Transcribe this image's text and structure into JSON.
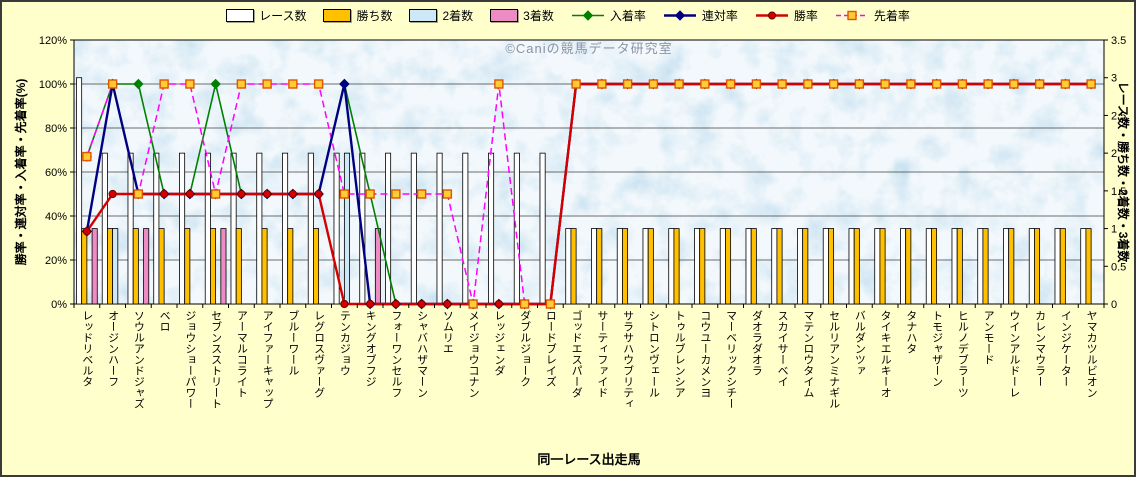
{
  "watermark": "©Caniの競馬データ研究室",
  "chart_data": {
    "type": "bar+line combo",
    "legend_position": "top",
    "plot_bg": "#BFDCEE",
    "categories": [
      "レッドリベルタ",
      "オージンハーフ",
      "ソウルアンドジャズ",
      "ベロ",
      "ジョウショーパワー",
      "セブンスストリート",
      "アーマルコライト",
      "アイファーキャップ",
      "ブルーワール",
      "レグロスヴァーグ",
      "テンカジョウ",
      "キングオブフジ",
      "フォーワンセルフ",
      "シャバハザマーン",
      "ソムリエ",
      "メイジョウコナン",
      "レッジェンダ",
      "ダブルジョーク",
      "ロードブレイズ",
      "ゴッドエスパーダ",
      "サーティファイド",
      "サラサハウブリティ",
      "シトロンヴェール",
      "トゥルブレンシア",
      "コウユーカメンヨ",
      "マーベリックシチー",
      "ダオラダオラ",
      "スカイサーベイ",
      "マテンロウタイム",
      "セルリアンミナギル",
      "バルダンツァ",
      "タイキエルキーオ",
      "タナハタ",
      "トモジャザーン",
      "ヒルノデブラーツ",
      "アンモード",
      "ウインアルドーレ",
      "カレンマウラー",
      "インジケーター",
      "ヤマカツルビオン"
    ],
    "bar_series": [
      {
        "key": "races",
        "name": "レース数",
        "color": "#FFFFFF",
        "values": [
          3,
          2,
          2,
          2,
          2,
          2,
          2,
          2,
          2,
          2,
          2,
          2,
          2,
          2,
          2,
          2,
          2,
          2,
          2,
          1,
          1,
          1,
          1,
          1,
          1,
          1,
          1,
          1,
          1,
          1,
          1,
          1,
          1,
          1,
          1,
          1,
          1,
          1,
          1,
          1
        ]
      },
      {
        "key": "wins",
        "name": "勝ち数",
        "color": "#FFC000",
        "values": [
          1,
          1,
          1,
          1,
          1,
          1,
          1,
          1,
          1,
          1,
          0,
          0,
          0,
          0,
          0,
          0,
          0,
          0,
          0,
          1,
          1,
          1,
          1,
          1,
          1,
          1,
          1,
          1,
          1,
          1,
          1,
          1,
          1,
          1,
          1,
          1,
          1,
          1,
          1,
          1
        ]
      },
      {
        "key": "seconds",
        "name": "2着数",
        "color": "#CDE9F8",
        "values": [
          0,
          1,
          0,
          0,
          0,
          0,
          0,
          0,
          0,
          0,
          2,
          0,
          0,
          0,
          0,
          0,
          0,
          0,
          0,
          0,
          0,
          0,
          0,
          0,
          0,
          0,
          0,
          0,
          0,
          0,
          0,
          0,
          0,
          0,
          0,
          0,
          0,
          0,
          0,
          0
        ]
      },
      {
        "key": "thirds",
        "name": "3着数",
        "color": "#ED8CC4",
        "values": [
          1,
          0,
          1,
          0,
          0,
          1,
          0,
          0,
          0,
          0,
          0,
          1,
          0,
          0,
          0,
          0,
          0,
          0,
          0,
          0,
          0,
          0,
          0,
          0,
          0,
          0,
          0,
          0,
          0,
          0,
          0,
          0,
          0,
          0,
          0,
          0,
          0,
          0,
          0,
          0
        ]
      }
    ],
    "line_series": [
      {
        "key": "place-rate",
        "name": "入着率",
        "color": "#008000",
        "marker": "diamond",
        "dash": false,
        "width": 1.6,
        "values": [
          67,
          100,
          100,
          50,
          50,
          100,
          50,
          50,
          50,
          50,
          100,
          50,
          0,
          0,
          0,
          0,
          0,
          0,
          0,
          100,
          100,
          100,
          100,
          100,
          100,
          100,
          100,
          100,
          100,
          100,
          100,
          100,
          100,
          100,
          100,
          100,
          100,
          100,
          100,
          100
        ]
      },
      {
        "key": "quinella-rate",
        "name": "連対率",
        "color": "#000080",
        "marker": "diamond",
        "dash": false,
        "width": 2.4,
        "values": [
          33,
          100,
          50,
          50,
          50,
          50,
          50,
          50,
          50,
          50,
          100,
          0,
          0,
          0,
          0,
          0,
          0,
          0,
          0,
          100,
          100,
          100,
          100,
          100,
          100,
          100,
          100,
          100,
          100,
          100,
          100,
          100,
          100,
          100,
          100,
          100,
          100,
          100,
          100,
          100
        ]
      },
      {
        "key": "win-rate",
        "name": "勝率",
        "color": "#D40000",
        "marker": "circle",
        "marker_fill": "#D40000",
        "marker_stroke": "#6B0000",
        "dash": false,
        "width": 2.4,
        "values": [
          33,
          50,
          50,
          50,
          50,
          50,
          50,
          50,
          50,
          50,
          0,
          0,
          0,
          0,
          0,
          0,
          0,
          0,
          0,
          100,
          100,
          100,
          100,
          100,
          100,
          100,
          100,
          100,
          100,
          100,
          100,
          100,
          100,
          100,
          100,
          100,
          100,
          100,
          100,
          100
        ]
      },
      {
        "key": "ahead-rate",
        "name": "先着率",
        "color": "#FF00FF",
        "marker": "square",
        "marker_fill": "#FFCC33",
        "marker_stroke": "#E05500",
        "dash": true,
        "width": 1.5,
        "values": [
          67,
          100,
          50,
          100,
          100,
          50,
          100,
          100,
          100,
          100,
          50,
          50,
          50,
          50,
          50,
          0,
          100,
          0,
          0,
          100,
          100,
          100,
          100,
          100,
          100,
          100,
          100,
          100,
          100,
          100,
          100,
          100,
          100,
          100,
          100,
          100,
          100,
          100,
          100,
          100
        ]
      }
    ],
    "left_axis": {
      "title": "勝率・連対率・入着率・先着率(%)",
      "ticks": [
        "0%",
        "20%",
        "40%",
        "60%",
        "80%",
        "100%",
        "120%"
      ],
      "tick_values": [
        0,
        20,
        40,
        60,
        80,
        100,
        120
      ],
      "min": 0,
      "max": 120
    },
    "right_axis": {
      "title": "レース数・勝ち数・2着数・3着数",
      "ticks": [
        "0",
        "0.5",
        "1",
        "1.5",
        "2",
        "2.5",
        "3",
        "3.5"
      ],
      "tick_values": [
        0,
        0.5,
        1,
        1.5,
        2,
        2.5,
        3,
        3.5
      ],
      "min": 0,
      "max": 3.5
    },
    "x_axis": {
      "title": "同一レース出走馬"
    }
  }
}
